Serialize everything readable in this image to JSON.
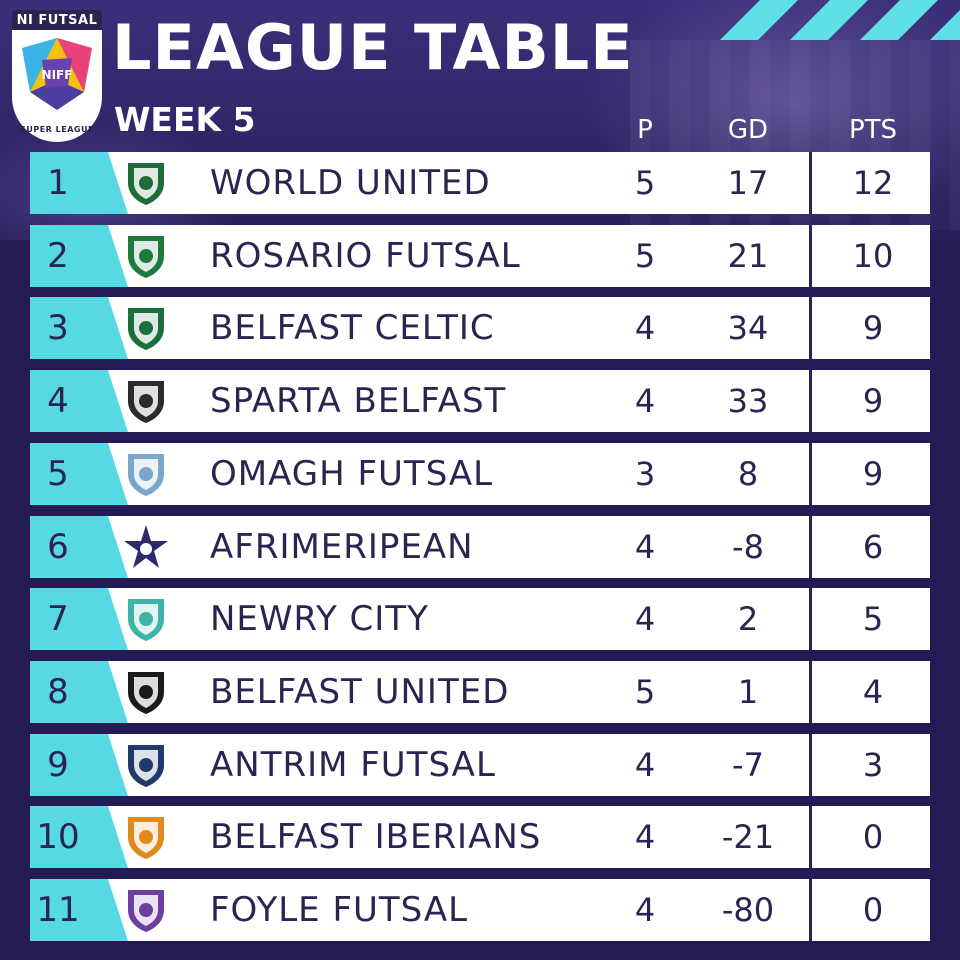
{
  "logo": {
    "top_text": "NI FUTSAL",
    "center_text": "NIFF",
    "bottom_text": "SUPER LEAGUE"
  },
  "header": {
    "title": "LEAGUE TABLE",
    "subtitle": "WEEK 5"
  },
  "columns": {
    "played": "P",
    "goal_difference": "GD",
    "points": "PTS"
  },
  "colors": {
    "background": "#241a56",
    "accent": "#57d9e3",
    "row": "#ffffff",
    "text": "#2a2450"
  },
  "table": [
    {
      "pos": "1",
      "team": "WORLD UNITED",
      "p": "5",
      "gd": "17",
      "pts": "12",
      "badge_icon": "world-united-crest-icon",
      "badge_color": "#1f6b3a"
    },
    {
      "pos": "2",
      "team": "ROSARIO FUTSAL",
      "p": "5",
      "gd": "21",
      "pts": "10",
      "badge_icon": "rosario-futsal-crest-icon",
      "badge_color": "#1f7a3f"
    },
    {
      "pos": "3",
      "team": "BELFAST CELTIC",
      "p": "4",
      "gd": "34",
      "pts": "9",
      "badge_icon": "belfast-celtic-crest-icon",
      "badge_color": "#1c6e3c"
    },
    {
      "pos": "4",
      "team": "SPARTA BELFAST",
      "p": "4",
      "gd": "33",
      "pts": "9",
      "badge_icon": "sparta-belfast-crest-icon",
      "badge_color": "#2b2b2b"
    },
    {
      "pos": "5",
      "team": "OMAGH FUTSAL",
      "p": "3",
      "gd": "8",
      "pts": "9",
      "badge_icon": "omagh-futsal-crest-icon",
      "badge_color": "#7aa6c8"
    },
    {
      "pos": "6",
      "team": "AFRIMERIPEAN",
      "p": "4",
      "gd": "-8",
      "pts": "6",
      "badge_icon": "afrimeripean-star-icon",
      "badge_color": "#2d2a6b"
    },
    {
      "pos": "7",
      "team": "NEWRY CITY",
      "p": "4",
      "gd": "2",
      "pts": "5",
      "badge_icon": "newry-city-crest-icon",
      "badge_color": "#3bb5a8"
    },
    {
      "pos": "8",
      "team": "BELFAST UNITED",
      "p": "5",
      "gd": "1",
      "pts": "4",
      "badge_icon": "belfast-united-crest-icon",
      "badge_color": "#1a1a1a"
    },
    {
      "pos": "9",
      "team": "ANTRIM FUTSAL",
      "p": "4",
      "gd": "-7",
      "pts": "3",
      "badge_icon": "antrim-futsal-crest-icon",
      "badge_color": "#1f3a6b"
    },
    {
      "pos": "10",
      "team": "BELFAST IBERIANS",
      "p": "4",
      "gd": "-21",
      "pts": "0",
      "badge_icon": "belfast-iberians-crest-icon",
      "badge_color": "#e08a1e"
    },
    {
      "pos": "11",
      "team": "FOYLE FUTSAL",
      "p": "4",
      "gd": "-80",
      "pts": "0",
      "badge_icon": "foyle-futsal-crest-icon",
      "badge_color": "#6b3fa0"
    }
  ]
}
